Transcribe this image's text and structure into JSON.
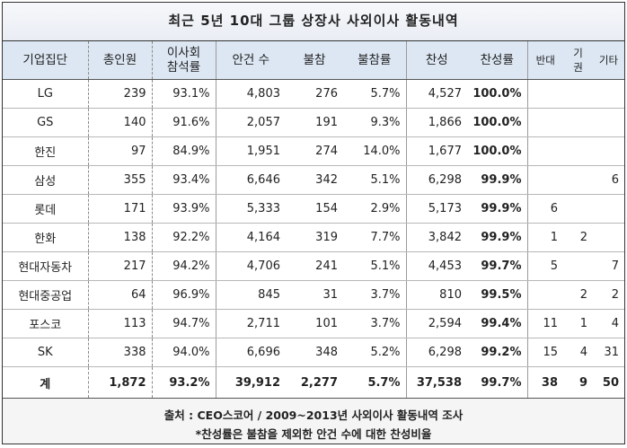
{
  "title": "최근 5년 10대 그룹 상장사 사외이사 활동내역",
  "headers": {
    "group": "기업집단",
    "members": "총인원",
    "attendance_line1": "이사회",
    "attendance_line2": "참석률",
    "agenda": "안건 수",
    "absent": "불참",
    "absent_rate": "불참률",
    "approve": "찬성",
    "approve_rate": "찬성률",
    "oppose": "반대",
    "abstain": "기권",
    "other": "기타"
  },
  "rows": [
    {
      "group": "LG",
      "members": "239",
      "attendance": "93.1%",
      "agenda": "4,803",
      "absent": "276",
      "absent_rate": "5.7%",
      "approve": "4,527",
      "approve_rate": "100.0%",
      "oppose": "",
      "abstain": "",
      "other": ""
    },
    {
      "group": "GS",
      "members": "140",
      "attendance": "91.6%",
      "agenda": "2,057",
      "absent": "191",
      "absent_rate": "9.3%",
      "approve": "1,866",
      "approve_rate": "100.0%",
      "oppose": "",
      "abstain": "",
      "other": ""
    },
    {
      "group": "한진",
      "members": "97",
      "attendance": "84.9%",
      "agenda": "1,951",
      "absent": "274",
      "absent_rate": "14.0%",
      "approve": "1,677",
      "approve_rate": "100.0%",
      "oppose": "",
      "abstain": "",
      "other": ""
    },
    {
      "group": "삼성",
      "members": "355",
      "attendance": "93.4%",
      "agenda": "6,646",
      "absent": "342",
      "absent_rate": "5.1%",
      "approve": "6,298",
      "approve_rate": "99.9%",
      "oppose": "",
      "abstain": "",
      "other": "6"
    },
    {
      "group": "롯데",
      "members": "171",
      "attendance": "93.9%",
      "agenda": "5,333",
      "absent": "154",
      "absent_rate": "2.9%",
      "approve": "5,173",
      "approve_rate": "99.9%",
      "oppose": "6",
      "abstain": "",
      "other": ""
    },
    {
      "group": "한화",
      "members": "138",
      "attendance": "92.2%",
      "agenda": "4,164",
      "absent": "319",
      "absent_rate": "7.7%",
      "approve": "3,842",
      "approve_rate": "99.9%",
      "oppose": "1",
      "abstain": "2",
      "other": ""
    },
    {
      "group": "현대자동차",
      "members": "217",
      "attendance": "94.2%",
      "agenda": "4,706",
      "absent": "241",
      "absent_rate": "5.1%",
      "approve": "4,453",
      "approve_rate": "99.7%",
      "oppose": "5",
      "abstain": "",
      "other": "7"
    },
    {
      "group": "현대중공업",
      "members": "64",
      "attendance": "96.9%",
      "agenda": "845",
      "absent": "31",
      "absent_rate": "3.7%",
      "approve": "810",
      "approve_rate": "99.5%",
      "oppose": "",
      "abstain": "2",
      "other": "2"
    },
    {
      "group": "포스코",
      "members": "113",
      "attendance": "94.7%",
      "agenda": "2,711",
      "absent": "101",
      "absent_rate": "3.7%",
      "approve": "2,594",
      "approve_rate": "99.4%",
      "oppose": "11",
      "abstain": "1",
      "other": "4"
    },
    {
      "group": "SK",
      "members": "338",
      "attendance": "94.0%",
      "agenda": "6,696",
      "absent": "348",
      "absent_rate": "5.2%",
      "approve": "6,298",
      "approve_rate": "99.2%",
      "oppose": "15",
      "abstain": "4",
      "other": "31"
    }
  ],
  "total": {
    "group": "계",
    "members": "1,872",
    "attendance": "93.2%",
    "agenda": "39,912",
    "absent": "2,277",
    "absent_rate": "5.7%",
    "approve": "37,538",
    "approve_rate": "99.7%",
    "oppose": "38",
    "abstain": "9",
    "other": "50"
  },
  "footer": {
    "source": "출처 : CEO스코어 / 2009~2013년 사외이사 활동내역 조사",
    "note": "*찬성률은 불참을 제외한 안건 수에 대한 찬성비율"
  }
}
